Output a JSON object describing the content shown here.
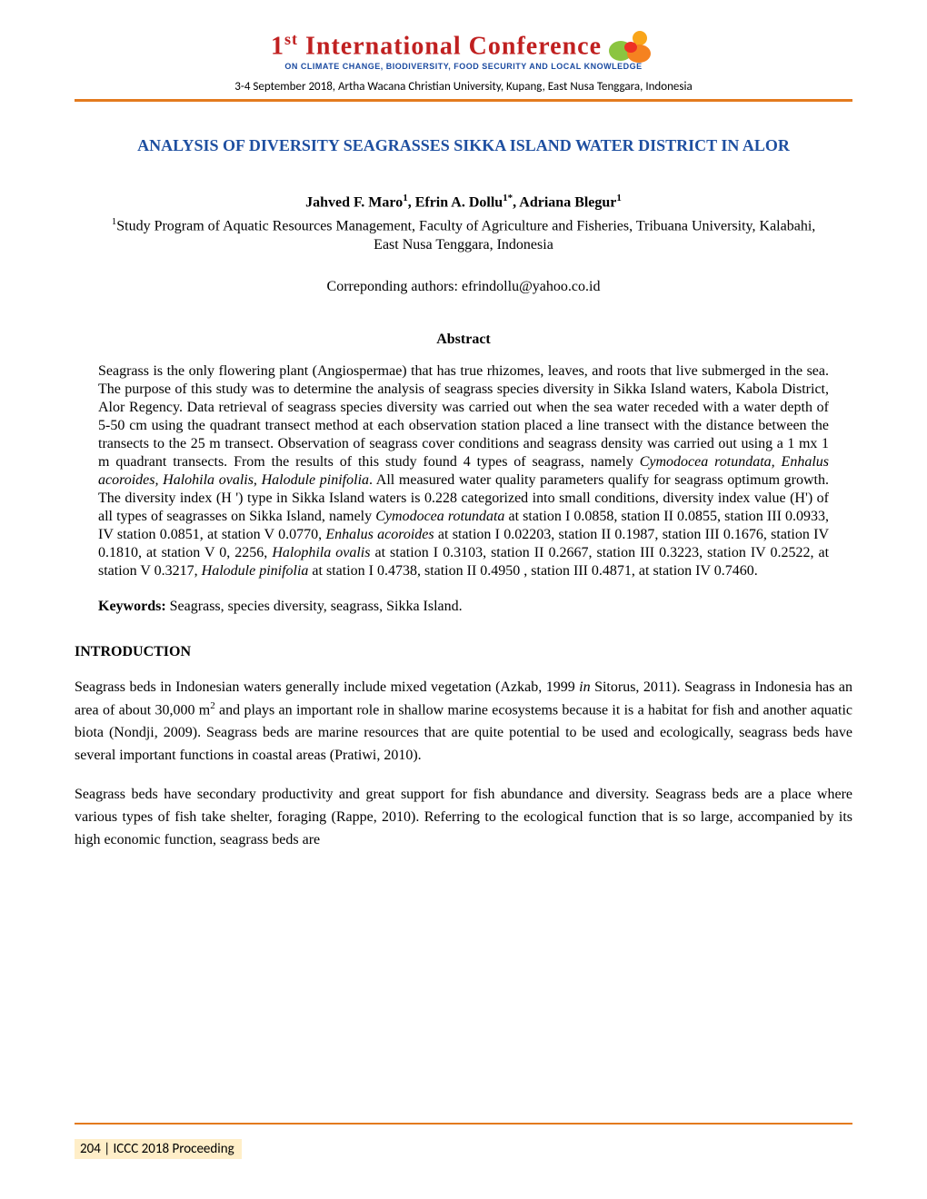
{
  "header": {
    "ordinal": "1",
    "ordinal_suffix": "st",
    "conference_word": " International Conference",
    "subtitle": "ON CLIMATE CHANGE, BIODIVERSITY, FOOD SECURITY AND LOCAL KNOWLEDGE",
    "dateline": "3-4 September 2018, Artha Wacana Christian University, Kupang, East Nusa Tenggara, Indonesia"
  },
  "colors": {
    "accent_orange": "#e37a1e",
    "title_blue": "#1e4fa0",
    "conf_red": "#c02020",
    "conf_blue": "#1a4aa0",
    "footer_bg": "#ffeec8",
    "icon_green": "#8bc540",
    "icon_orange": "#f58220",
    "icon_red": "#ee3124",
    "icon_sun": "#f9a51a"
  },
  "paper": {
    "title": "ANALYSIS OF DIVERSITY SEAGRASSES SIKKA ISLAND WATER DISTRICT IN ALOR",
    "authors_html": "Jahved F. Maro<sup>1</sup>, Efrin A. Dollu<sup>1*</sup>, Adriana Blegur<sup>1</sup>",
    "affiliation_html": "<sup>1</sup>Study Program of Aquatic Resources Management, Faculty of Agriculture and Fisheries, Tribuana University, Kalabahi, East Nusa Tenggara, Indonesia",
    "corresponding": "Correponding authors: efrindollu@yahoo.co.id",
    "abstract_heading": "Abstract",
    "abstract_html": "Seagrass is the only flowering plant (Angiospermae) that has true rhizomes, leaves, and roots that live submerged in the sea. The purpose of this study was to determine the analysis of seagrass species diversity in Sikka Island waters, Kabola District, Alor Regency. Data retrieval of seagrass  species diversity was carried out when the sea water receded with a water depth of 5-50 cm using the quadrant transect method at each observation station placed a line transect with the distance between the transects to the 25 m transect. Observation of seagrass cover conditions and seagrass density was carried out using a 1 mx 1 m quadrant transects. From the results of this study found 4 types of seagrass, namely <span class=\"italic\">Cymodocea rotundata, Enhalus acoroides, Halohila ovalis, Halodule pinifolia</span>. All measured water quality parameters qualify for seagrass optimum growth. The diversity index (H ') type in Sikka Island waters is 0.228 categorized into small conditions, diversity index value (H') of all types of seagrasses on Sikka Island, namely <span class=\"italic\">Cymodocea rotundata</span> at station I 0.0858, station II 0.0855, station III 0.0933, IV station 0.0851, at station V 0.0770, <span class=\"italic\">Enhalus acoroides</span> at station I 0.02203, station II 0.1987, station III 0.1676, station IV 0.1810, at station V 0, 2256, <span class=\"italic\">Halophila ovalis</span> at station I 0.3103, station II 0.2667, station III 0.3223, station IV 0.2522, at station V 0.3217, <span class=\"italic\">Halodule pinifolia</span> at station I 0.4738, station II 0.4950 , station III 0.4871, at station IV 0.7460.",
    "keywords_label": "Keywords: ",
    "keywords_text": "Seagrass, species diversity, seagrass, Sikka Island.",
    "intro_heading": "INTRODUCTION",
    "intro_p1_html": "Seagrass beds in Indonesian waters generally include mixed vegetation (Azkab, 1999 <span class=\"italic\">in</span> Sitorus, 2011). Seagrass in Indonesia has an area of about 30,000 m<sup>2</sup> and plays an important role in shallow marine ecosystems because it is a habitat for fish and another aquatic biota (Nondji, 2009). Seagrass beds are marine resources that are quite potential to be used and ecologically, seagrass beds have several important functions in coastal areas (Pratiwi, 2010).",
    "intro_p2_html": "Seagrass beds have secondary productivity and great support for fish abundance and diversity. Seagrass beds are a place where various types of fish take shelter, foraging (Rappe, 2010). Referring to the ecological function that is so large, accompanied by its high economic function, seagrass beds are"
  },
  "footer": {
    "page_number": "204",
    "separator": " | ",
    "label": "ICCC 2018 Proceeding"
  }
}
